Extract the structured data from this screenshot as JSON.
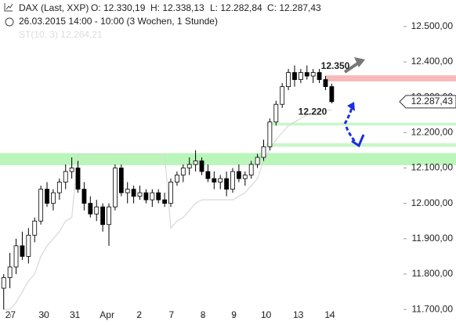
{
  "header": {
    "instrument": "DAX (Last, XXP)",
    "open": "O: 12.330,19",
    "high": "H: 12.338,13",
    "low": "L: 12.282,84",
    "close": "C: 12.287,43",
    "period": "26.03.2015 14:00 - 10:00 (3 Wochen, 1 Stunde)",
    "indicator": "ST(10, 3) 12.264,21"
  },
  "chart_data": {
    "type": "candlestick",
    "x": [
      0,
      1,
      2,
      3,
      4,
      5,
      6,
      7,
      8,
      9,
      10,
      11,
      12,
      13,
      14,
      15,
      16,
      17,
      18,
      19,
      20,
      21,
      22,
      23,
      24,
      25,
      26,
      27,
      28,
      29,
      30,
      31,
      32,
      33,
      34,
      35,
      36,
      37,
      38,
      39,
      40,
      41,
      42,
      43,
      44,
      45,
      46,
      47,
      48,
      49,
      50,
      51,
      52,
      53
    ],
    "ohlc": [
      [
        11760,
        11800,
        11700,
        11790
      ],
      [
        11790,
        11860,
        11760,
        11820
      ],
      [
        11820,
        11900,
        11800,
        11880
      ],
      [
        11880,
        11920,
        11840,
        11850
      ],
      [
        11850,
        11930,
        11830,
        11910
      ],
      [
        11910,
        11960,
        11890,
        11950
      ],
      [
        11950,
        12050,
        11940,
        12040
      ],
      [
        12040,
        12060,
        11990,
        12000
      ],
      [
        12000,
        12040,
        11980,
        12030
      ],
      [
        12030,
        12070,
        12010,
        12060
      ],
      [
        12060,
        12110,
        12040,
        12090
      ],
      [
        12090,
        12130,
        12070,
        12100
      ],
      [
        12100,
        12120,
        12030,
        12040
      ],
      [
        12040,
        12060,
        11980,
        12000
      ],
      [
        12000,
        12020,
        11960,
        11970
      ],
      [
        11970,
        12010,
        11950,
        11990
      ],
      [
        11990,
        12000,
        11920,
        11940
      ],
      [
        11940,
        12000,
        11880,
        11990
      ],
      [
        11990,
        12110,
        11980,
        12100
      ],
      [
        12100,
        12110,
        12020,
        12030
      ],
      [
        12030,
        12060,
        12000,
        12040
      ],
      [
        12040,
        12050,
        12000,
        12020
      ],
      [
        12020,
        12050,
        12010,
        12030
      ],
      [
        12030,
        12040,
        12000,
        12010
      ],
      [
        12010,
        12040,
        11990,
        12030
      ],
      [
        12030,
        12040,
        12000,
        12010
      ],
      [
        12010,
        12030,
        11990,
        12000
      ],
      [
        12000,
        12070,
        11990,
        12060
      ],
      [
        12060,
        12090,
        12050,
        12080
      ],
      [
        12080,
        12110,
        12060,
        12100
      ],
      [
        12100,
        12130,
        12080,
        12110
      ],
      [
        12110,
        12150,
        12090,
        12120
      ],
      [
        12120,
        12130,
        12080,
        12090
      ],
      [
        12090,
        12110,
        12060,
        12070
      ],
      [
        12070,
        12090,
        12040,
        12060
      ],
      [
        12060,
        12080,
        12040,
        12070
      ],
      [
        12070,
        12090,
        12020,
        12040
      ],
      [
        12040,
        12100,
        12030,
        12090
      ],
      [
        12090,
        12110,
        12060,
        12070
      ],
      [
        12070,
        12090,
        12050,
        12080
      ],
      [
        12080,
        12120,
        12070,
        12110
      ],
      [
        12110,
        12140,
        12100,
        12130
      ],
      [
        12130,
        12180,
        12120,
        12160
      ],
      [
        12160,
        12240,
        12150,
        12230
      ],
      [
        12230,
        12290,
        12220,
        12280
      ],
      [
        12280,
        12340,
        12270,
        12330
      ],
      [
        12330,
        12380,
        12320,
        12370
      ],
      [
        12370,
        12390,
        12330,
        12350
      ],
      [
        12350,
        12380,
        12340,
        12370
      ],
      [
        12370,
        12390,
        12350,
        12360
      ],
      [
        12360,
        12380,
        12340,
        12370
      ],
      [
        12370,
        12380,
        12340,
        12350
      ],
      [
        12350,
        12360,
        12320,
        12330
      ],
      [
        12330.19,
        12338.13,
        12282.84,
        12287.43
      ]
    ],
    "supertrend": {
      "color": "#d8d8d8",
      "values": [
        11700,
        11700,
        11720,
        11750,
        11780,
        11800,
        11850,
        11880,
        11900,
        11920,
        11950,
        11960,
        12140,
        12140,
        12140,
        12140,
        12140,
        12140,
        12140,
        12140,
        12140,
        12140,
        12140,
        12140,
        12140,
        12140,
        12140,
        11930,
        11950,
        11960,
        11980,
        12000,
        12010,
        12010,
        12010,
        12010,
        12010,
        12010,
        12020,
        12030,
        12050,
        12070,
        12120,
        12150,
        12180,
        12200,
        12220,
        12230,
        12240,
        12250,
        12255,
        12260,
        12262,
        12264.21
      ]
    },
    "zones": [
      {
        "from": 12345,
        "to": 12362,
        "color": "#f7b9b9"
      },
      {
        "from": 12220,
        "to": 12228,
        "color": "#c9f6c9"
      },
      {
        "from": 12160,
        "to": 12170,
        "color": "#c9f6c9"
      },
      {
        "from": 12108,
        "to": 12142,
        "color": "#baf5ba"
      }
    ],
    "annotations": [
      {
        "value": 12350,
        "label": "12.350",
        "color": "#cc0000"
      },
      {
        "value": 12220,
        "label": "12.220",
        "color": "#1a7a1a"
      }
    ],
    "last_price": {
      "value": 12287.43,
      "label": "12.287,43"
    },
    "xlim": [
      -0.6,
      64.6
    ],
    "ylim": [
      11656,
      12575
    ],
    "xticks": [
      {
        "value": 1.1,
        "label": "27"
      },
      {
        "value": 6.5,
        "label": "30"
      },
      {
        "value": 11.5,
        "label": "31"
      },
      {
        "value": 16.7,
        "label": "Apr"
      },
      {
        "value": 21.9,
        "label": "2"
      },
      {
        "value": 27.1,
        "label": "7"
      },
      {
        "value": 32.2,
        "label": "8"
      },
      {
        "value": 37.2,
        "label": "9"
      },
      {
        "value": 42.4,
        "label": "10"
      },
      {
        "value": 47.6,
        "label": "13"
      },
      {
        "value": 52.7,
        "label": "14"
      }
    ],
    "yticks": [
      {
        "value": 11700,
        "label": "11.700,00"
      },
      {
        "value": 11800,
        "label": "11.800,00"
      },
      {
        "value": 11900,
        "label": "11.900,00"
      },
      {
        "value": 12000,
        "label": "12.000,00"
      },
      {
        "value": 12100,
        "label": "12.100,00"
      },
      {
        "value": 12200,
        "label": "12.200,00"
      },
      {
        "value": 12300,
        "label": "12.300,00"
      },
      {
        "value": 12400,
        "label": "12.400,00"
      },
      {
        "value": 12500,
        "label": "12.500,00"
      }
    ]
  }
}
